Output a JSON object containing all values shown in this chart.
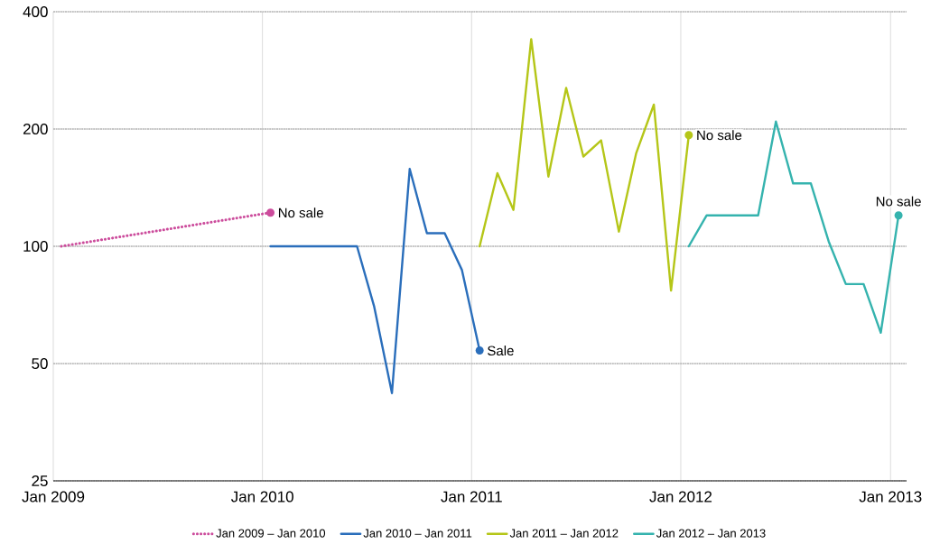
{
  "chart_data": {
    "type": "line",
    "xlim": [
      "2009-01",
      "2013-01-29"
    ],
    "xticks": [
      {
        "value": "2009-01",
        "label": "Jan 2009"
      },
      {
        "value": "2010-01",
        "label": "Jan 2010"
      },
      {
        "value": "2011-01",
        "label": "Jan 2011"
      },
      {
        "value": "2012-01",
        "label": "Jan 2012"
      },
      {
        "value": "2013-01",
        "label": "Jan 2013"
      }
    ],
    "ylim": [
      25,
      400
    ],
    "yticks": [
      25,
      50,
      100,
      200,
      400
    ],
    "log": "y",
    "grid": true,
    "legend": "bottom",
    "series": [
      {
        "name": "Jan 2009 – Jan 2010",
        "color": "#cc4c9c",
        "line_style": "dotted",
        "x": [
          "2009-01-15",
          "2010-01-15"
        ],
        "values": [
          100,
          122
        ]
      },
      {
        "name": "Jan 2010 – Jan 2011",
        "color": "#2a6ebb",
        "line_style": "solid",
        "x": [
          "2010-01-15",
          "2010-02-15",
          "2010-03-15",
          "2010-04-15",
          "2010-05-15",
          "2010-06-15",
          "2010-07-15",
          "2010-08-15",
          "2010-09-15",
          "2010-10-15",
          "2010-11-15",
          "2010-12-15",
          "2011-01-15"
        ],
        "values": [
          100,
          100,
          100,
          100,
          100,
          100,
          70,
          42,
          158,
          108,
          108,
          87,
          54
        ]
      },
      {
        "name": "Jan 2011 – Jan 2012",
        "color": "#b5c618",
        "line_style": "solid",
        "x": [
          "2011-01-15",
          "2011-02-15",
          "2011-03-15",
          "2011-04-15",
          "2011-05-15",
          "2011-06-15",
          "2011-07-15",
          "2011-08-15",
          "2011-09-15",
          "2011-10-15",
          "2011-11-15",
          "2011-12-15",
          "2012-01-15"
        ],
        "values": [
          100,
          154,
          124,
          340,
          151,
          255,
          170,
          187,
          109,
          173,
          231,
          77,
          193
        ]
      },
      {
        "name": "Jan 2012 – Jan 2013",
        "color": "#35b3ae",
        "line_style": "solid",
        "x": [
          "2012-01-15",
          "2012-02-15",
          "2012-03-15",
          "2012-04-15",
          "2012-05-15",
          "2012-06-15",
          "2012-07-15",
          "2012-08-15",
          "2012-09-15",
          "2012-10-15",
          "2012-11-15",
          "2012-12-15",
          "2013-01-15"
        ],
        "values": [
          100,
          120,
          120,
          120,
          120,
          209,
          145,
          145,
          103,
          80,
          80,
          60,
          120
        ]
      }
    ],
    "annotations": [
      {
        "text": "No sale",
        "x": "2010-01-15",
        "y": 122
      },
      {
        "text": "Sale",
        "x": "2011-01-15",
        "y": 54
      },
      {
        "text": "No sale",
        "x": "2012-01-15",
        "y": 193
      },
      {
        "text": "No sale",
        "x": "2013-01-15",
        "y": 120
      }
    ]
  }
}
